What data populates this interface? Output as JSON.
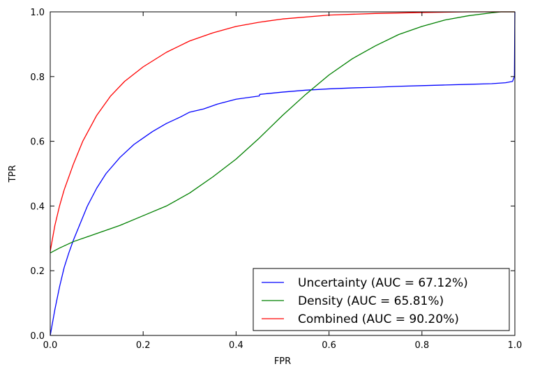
{
  "chart_data": {
    "type": "line",
    "title": "",
    "xlabel": "FPR",
    "ylabel": "TPR",
    "xlim": [
      0,
      1
    ],
    "ylim": [
      0,
      1
    ],
    "xticks": [
      "0.0",
      "0.2",
      "0.4",
      "0.6",
      "0.8",
      "1.0"
    ],
    "yticks": [
      "0.0",
      "0.2",
      "0.4",
      "0.6",
      "0.8",
      "1.0"
    ],
    "grid": false,
    "legend_position": "bottom-right",
    "series": [
      {
        "name": "Uncertainty (AUC = 67.12%)",
        "color": "#0000ff",
        "x": [
          0.0,
          0.01,
          0.02,
          0.03,
          0.04,
          0.05,
          0.06,
          0.08,
          0.1,
          0.12,
          0.15,
          0.18,
          0.2,
          0.22,
          0.25,
          0.28,
          0.3,
          0.33,
          0.36,
          0.4,
          0.45,
          0.451,
          0.5,
          0.55,
          0.6,
          0.65,
          0.7,
          0.75,
          0.8,
          0.85,
          0.9,
          0.95,
          0.98,
          0.995,
          0.999,
          1.0
        ],
        "y": [
          0.0,
          0.08,
          0.15,
          0.21,
          0.255,
          0.295,
          0.33,
          0.4,
          0.455,
          0.5,
          0.55,
          0.59,
          0.61,
          0.63,
          0.655,
          0.675,
          0.69,
          0.7,
          0.715,
          0.73,
          0.74,
          0.745,
          0.752,
          0.758,
          0.762,
          0.765,
          0.767,
          0.77,
          0.772,
          0.774,
          0.776,
          0.778,
          0.781,
          0.785,
          0.8,
          1.0
        ]
      },
      {
        "name": "Density (AUC = 65.81%)",
        "color": "#008000",
        "x": [
          0.0,
          0.02,
          0.05,
          0.08,
          0.1,
          0.15,
          0.2,
          0.25,
          0.3,
          0.35,
          0.4,
          0.45,
          0.5,
          0.55,
          0.6,
          0.65,
          0.7,
          0.75,
          0.8,
          0.85,
          0.9,
          0.95,
          0.97,
          1.0
        ],
        "y": [
          0.255,
          0.27,
          0.29,
          0.305,
          0.315,
          0.34,
          0.37,
          0.4,
          0.44,
          0.49,
          0.545,
          0.61,
          0.68,
          0.745,
          0.805,
          0.855,
          0.895,
          0.93,
          0.955,
          0.975,
          0.988,
          0.997,
          1.0,
          1.0
        ]
      },
      {
        "name": "Combined (AUC = 90.20%)",
        "color": "#ff0000",
        "x": [
          0.0,
          0.005,
          0.01,
          0.02,
          0.03,
          0.05,
          0.07,
          0.1,
          0.13,
          0.16,
          0.2,
          0.25,
          0.3,
          0.35,
          0.4,
          0.45,
          0.5,
          0.6,
          0.7,
          0.8,
          0.9,
          1.0
        ],
        "y": [
          0.26,
          0.3,
          0.34,
          0.4,
          0.45,
          0.53,
          0.6,
          0.68,
          0.74,
          0.785,
          0.83,
          0.875,
          0.91,
          0.935,
          0.955,
          0.968,
          0.978,
          0.99,
          0.995,
          0.998,
          1.0,
          1.0
        ]
      }
    ]
  }
}
